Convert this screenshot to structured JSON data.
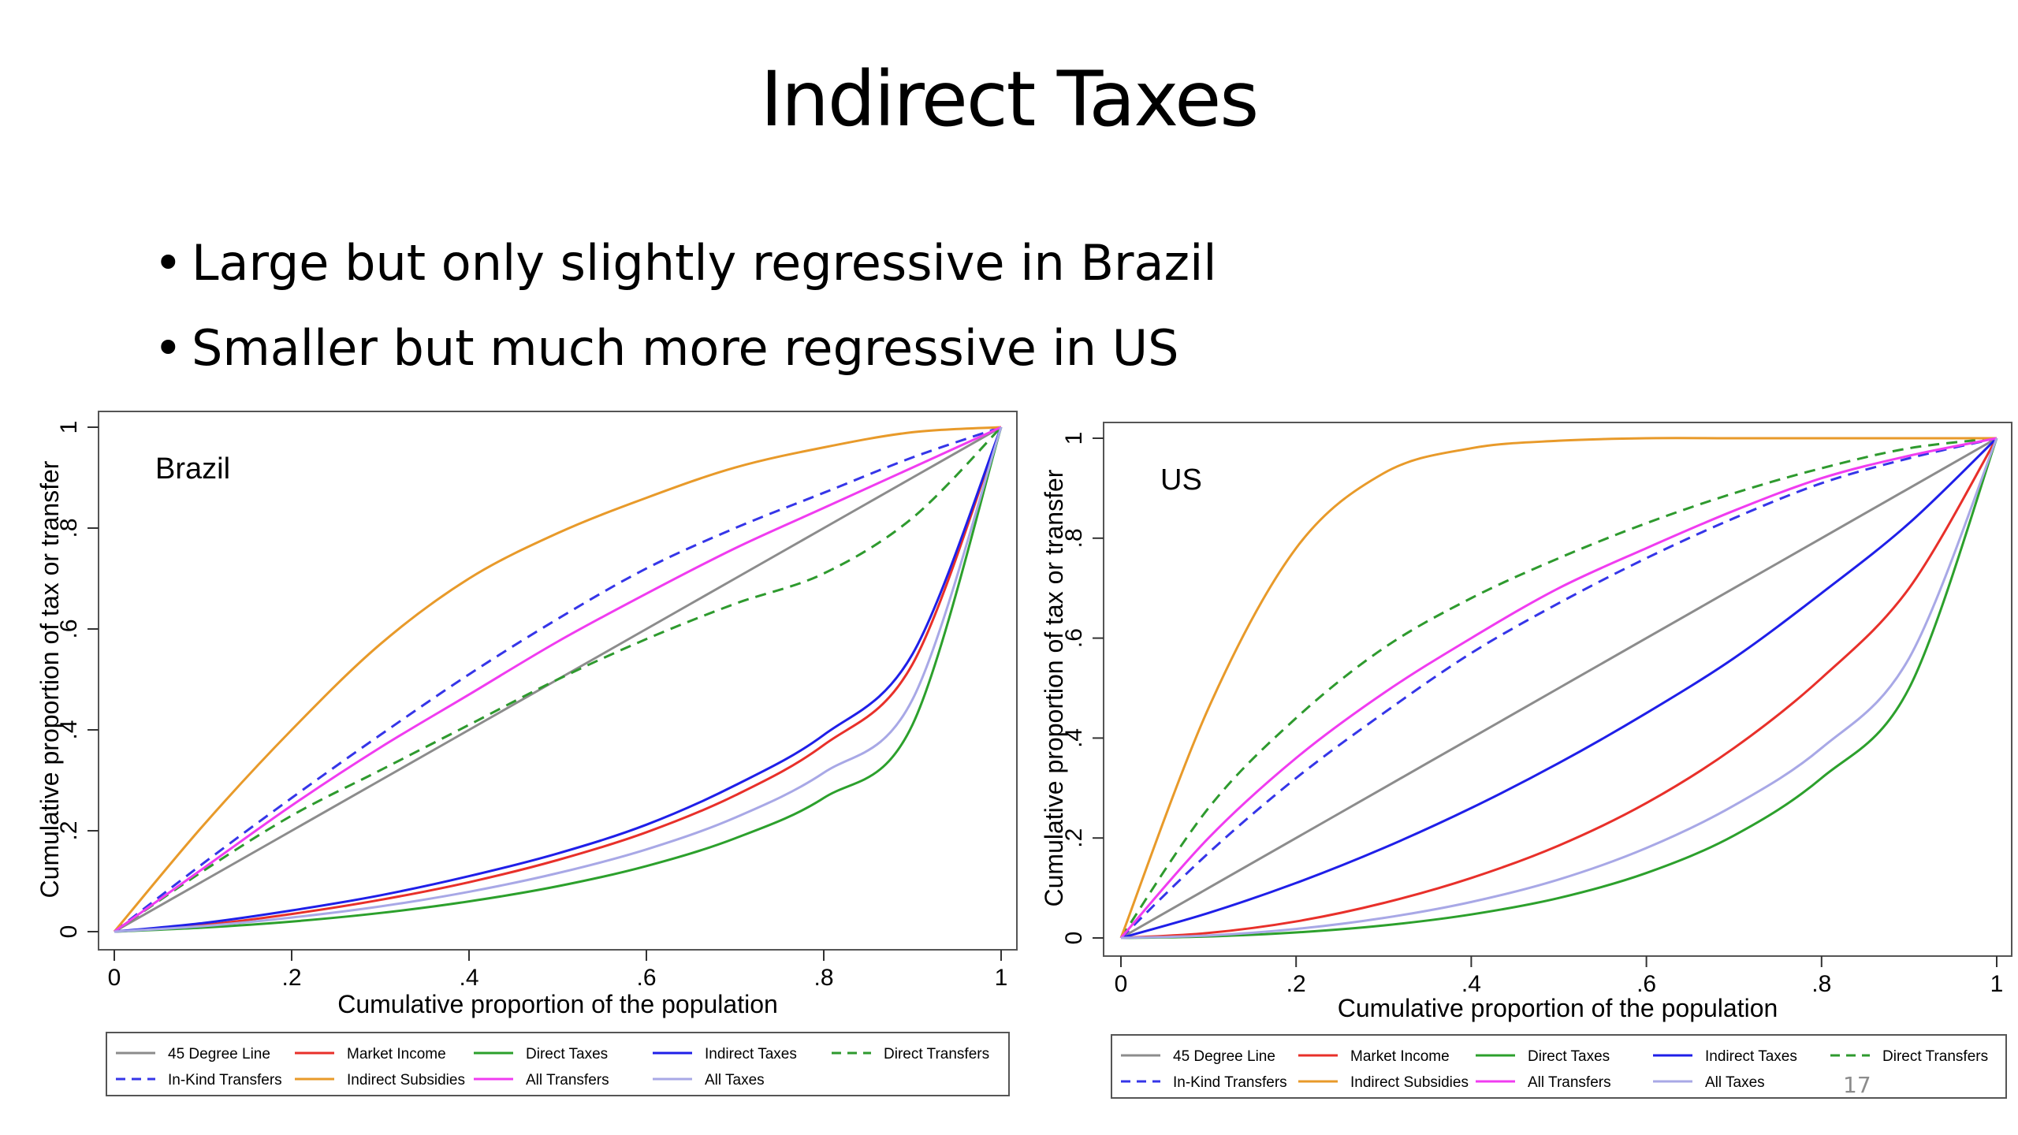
{
  "slide": {
    "title": "Indirect Taxes",
    "bullets": [
      "Large but only slightly regressive in Brazil",
      "Smaller but much more regressive in US"
    ],
    "slide_number": "17"
  },
  "chart_data": [
    {
      "type": "line",
      "panel_label": "Brazil",
      "xlabel": "Cumulative proportion of the population",
      "ylabel": "Cumulative proportion of tax or transfer",
      "xlim": [
        0,
        1
      ],
      "ylim": [
        0,
        1
      ],
      "x_ticks": [
        "0",
        ".2",
        ".4",
        ".6",
        ".8",
        "1"
      ],
      "y_ticks": [
        "0",
        ".2",
        ".4",
        ".6",
        ".8",
        "1"
      ],
      "grid": false,
      "legend_position": "bottom",
      "x": [
        0,
        0.1,
        0.2,
        0.3,
        0.4,
        0.5,
        0.6,
        0.7,
        0.8,
        0.9,
        1
      ],
      "series": [
        {
          "name": "45 Degree Line",
          "color": "#8c8c8c",
          "dashed": false,
          "values": [
            0,
            0.1,
            0.2,
            0.3,
            0.4,
            0.5,
            0.6,
            0.7,
            0.8,
            0.9,
            1
          ]
        },
        {
          "name": "Market Income",
          "color": "#e8302a",
          "dashed": false,
          "values": [
            0,
            0.013,
            0.035,
            0.063,
            0.098,
            0.142,
            0.197,
            0.27,
            0.37,
            0.53,
            1
          ]
        },
        {
          "name": "Direct Taxes",
          "color": "#2ca02c",
          "dashed": false,
          "values": [
            0,
            0.008,
            0.02,
            0.037,
            0.06,
            0.09,
            0.13,
            0.185,
            0.265,
            0.41,
            1
          ]
        },
        {
          "name": "Indirect Taxes",
          "color": "#1f1fe8",
          "dashed": false,
          "values": [
            0,
            0.017,
            0.042,
            0.072,
            0.11,
            0.155,
            0.212,
            0.29,
            0.39,
            0.55,
            1
          ]
        },
        {
          "name": "Direct Transfers",
          "color": "#2e9a2e",
          "dashed": true,
          "values": [
            0,
            0.12,
            0.23,
            0.32,
            0.41,
            0.5,
            0.58,
            0.65,
            0.71,
            0.82,
            1
          ]
        },
        {
          "name": "In-Kind Transfers",
          "color": "#3535e8",
          "dashed": true,
          "values": [
            0,
            0.135,
            0.265,
            0.39,
            0.51,
            0.62,
            0.72,
            0.8,
            0.87,
            0.94,
            1
          ]
        },
        {
          "name": "Indirect Subsidies",
          "color": "#e89a2a",
          "dashed": false,
          "values": [
            0,
            0.21,
            0.4,
            0.57,
            0.7,
            0.79,
            0.86,
            0.92,
            0.96,
            0.99,
            1
          ]
        },
        {
          "name": "All Transfers",
          "color": "#f03cf0",
          "dashed": false,
          "values": [
            0,
            0.125,
            0.25,
            0.365,
            0.47,
            0.575,
            0.67,
            0.76,
            0.84,
            0.92,
            1
          ]
        },
        {
          "name": "All Taxes",
          "color": "#a8a8e6",
          "dashed": false,
          "values": [
            0,
            0.011,
            0.028,
            0.05,
            0.079,
            0.116,
            0.163,
            0.226,
            0.315,
            0.46,
            1
          ]
        }
      ]
    },
    {
      "type": "line",
      "panel_label": "US",
      "xlabel": "Cumulative proportion of the population",
      "ylabel": "Cumulative proportion of tax or transfer",
      "xlim": [
        0,
        1
      ],
      "ylim": [
        0,
        1
      ],
      "x_ticks": [
        "0",
        ".2",
        ".4",
        ".6",
        ".8",
        "1"
      ],
      "y_ticks": [
        "0",
        ".2",
        ".4",
        ".6",
        ".8",
        "1"
      ],
      "grid": false,
      "legend_position": "bottom",
      "x": [
        0,
        0.1,
        0.2,
        0.3,
        0.4,
        0.5,
        0.6,
        0.7,
        0.8,
        0.9,
        1
      ],
      "series": [
        {
          "name": "45 Degree Line",
          "color": "#8c8c8c",
          "dashed": false,
          "values": [
            0,
            0.1,
            0.2,
            0.3,
            0.4,
            0.5,
            0.6,
            0.7,
            0.8,
            0.9,
            1
          ]
        },
        {
          "name": "Market Income",
          "color": "#e8302a",
          "dashed": false,
          "values": [
            0,
            0.01,
            0.033,
            0.07,
            0.12,
            0.185,
            0.27,
            0.38,
            0.52,
            0.7,
            1
          ]
        },
        {
          "name": "Direct Taxes",
          "color": "#2ca02c",
          "dashed": false,
          "values": [
            0,
            0.003,
            0.011,
            0.025,
            0.047,
            0.08,
            0.13,
            0.205,
            0.32,
            0.5,
            1
          ]
        },
        {
          "name": "Indirect Taxes",
          "color": "#1f1fe8",
          "dashed": false,
          "values": [
            0,
            0.05,
            0.11,
            0.18,
            0.26,
            0.35,
            0.45,
            0.56,
            0.69,
            0.83,
            1
          ]
        },
        {
          "name": "Direct Transfers",
          "color": "#2e9a2e",
          "dashed": true,
          "values": [
            0,
            0.26,
            0.44,
            0.58,
            0.68,
            0.76,
            0.83,
            0.89,
            0.94,
            0.98,
            1
          ]
        },
        {
          "name": "In-Kind Transfers",
          "color": "#3535e8",
          "dashed": true,
          "values": [
            0,
            0.17,
            0.32,
            0.45,
            0.57,
            0.67,
            0.76,
            0.84,
            0.91,
            0.96,
            1
          ]
        },
        {
          "name": "Indirect Subsidies",
          "color": "#e89a2a",
          "dashed": false,
          "values": [
            0,
            0.46,
            0.78,
            0.93,
            0.98,
            0.995,
            1,
            1,
            1,
            1,
            1
          ]
        },
        {
          "name": "All Transfers",
          "color": "#f03cf0",
          "dashed": false,
          "values": [
            0,
            0.2,
            0.36,
            0.49,
            0.6,
            0.7,
            0.78,
            0.855,
            0.92,
            0.965,
            1
          ]
        },
        {
          "name": "All Taxes",
          "color": "#a8a8e6",
          "dashed": false,
          "values": [
            0,
            0.005,
            0.018,
            0.04,
            0.072,
            0.117,
            0.18,
            0.265,
            0.38,
            0.56,
            1
          ]
        }
      ]
    }
  ]
}
